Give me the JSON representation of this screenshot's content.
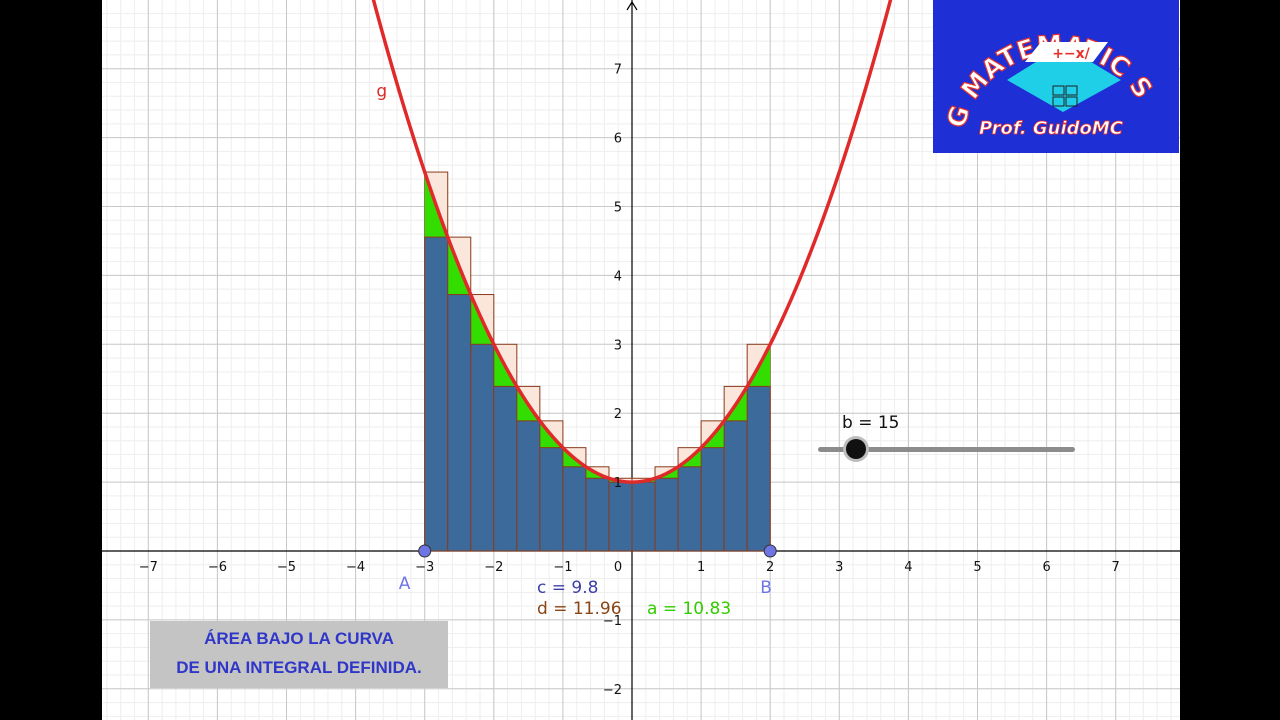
{
  "graph": {
    "function_label": "g",
    "point_a_label": "A",
    "point_b_label": "B",
    "x_ticks": [
      "−7",
      "−6",
      "−5",
      "−4",
      "−3",
      "−2",
      "−1",
      "0",
      "1",
      "2",
      "3",
      "4",
      "5",
      "6",
      "7"
    ],
    "y_ticks": [
      "7",
      "6",
      "5",
      "4",
      "3",
      "2",
      "1",
      "−1",
      "−2"
    ],
    "c_value": "c = 9.8",
    "d_value": "d = 11.96",
    "a_value": "a = 10.83",
    "colors": {
      "curve": "#e02a2a",
      "lower_sum": "#3c6a9b",
      "upper_sum": "#fbe6dc",
      "difference": "#33dd00",
      "points": "#6e76e6",
      "c_text": "#3b3fa8",
      "d_text": "#8b4513",
      "a_text": "#33cc00"
    }
  },
  "slider": {
    "label": "b = 15",
    "value": 15
  },
  "caption": {
    "line1": "ÁREA BAJO LA CURVA",
    "line2": "DE UNA INTEGRAL DEFINIDA."
  },
  "logo": {
    "arc_text": "MATEMATIC",
    "arc_start": "G",
    "arc_end": "S",
    "subtitle": "Prof. GuidoMC",
    "chip_text": "+−x/"
  },
  "chart_data": {
    "type": "area",
    "function": "g(x) = 0.5·x^2 + 1",
    "interval": [
      -3,
      2
    ],
    "partitions": 15,
    "lower_sum": 9.8,
    "upper_sum": 11.96,
    "area": 10.83,
    "xlim": [
      -7,
      7
    ],
    "ylim": [
      -2,
      7
    ]
  }
}
